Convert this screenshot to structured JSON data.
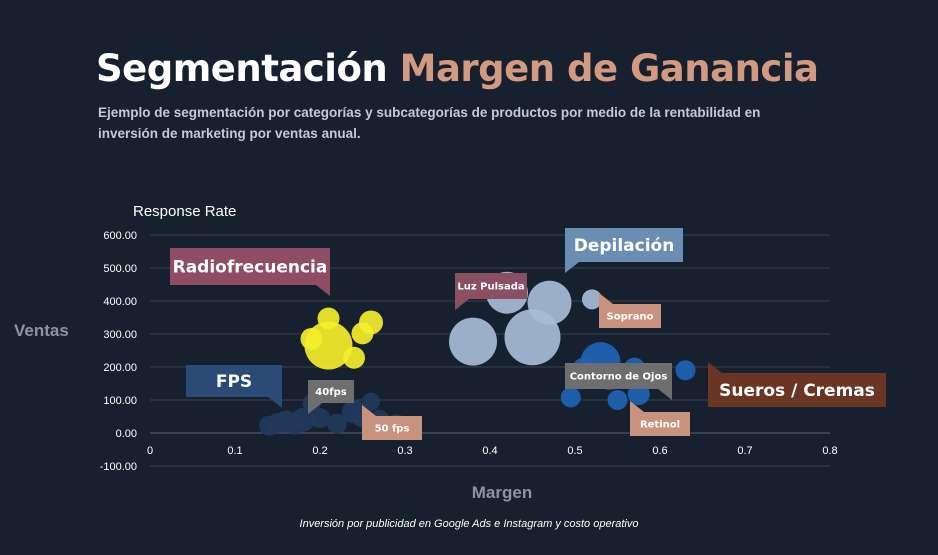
{
  "header": {
    "title_part1": "Segmentación",
    "title_part2": "Margen de Ganancia",
    "subtitle": "Ejemplo de segmentación por categorías y subcategorías de productos por medio de la rentabilidad en inversión de marketing por ventas anual."
  },
  "footer": {
    "note": "Inversión por publicidad en Google Ads e Instagram y costo operativo"
  },
  "chart_data": {
    "type": "scatter",
    "subtype": "bubble",
    "title": "Response Rate",
    "xlabel": "Margen",
    "ylabel": "Ventas",
    "xlim": [
      0,
      0.8
    ],
    "ylim": [
      -100,
      600
    ],
    "x_ticks": [
      "0",
      "0.1",
      "0.2",
      "0.3",
      "0.4",
      "0.5",
      "0.6",
      "0.7",
      "0.8"
    ],
    "y_ticks": [
      "-100.00",
      "0.00",
      "100.00",
      "200.00",
      "300.00",
      "400.00",
      "500.00",
      "600.00"
    ],
    "grid": "horizontal",
    "series": [
      {
        "color": "#f4ee2a",
        "points": [
          {
            "x": 0.19,
            "y": 285,
            "size": 11
          },
          {
            "x": 0.21,
            "y": 347,
            "size": 11
          },
          {
            "x": 0.21,
            "y": 265,
            "size": 24
          },
          {
            "x": 0.24,
            "y": 228,
            "size": 11
          },
          {
            "x": 0.25,
            "y": 302,
            "size": 11
          },
          {
            "x": 0.26,
            "y": 335,
            "size": 12
          }
        ]
      },
      {
        "color": "#a7bcd6",
        "points": [
          {
            "x": 0.38,
            "y": 277,
            "size": 24
          },
          {
            "x": 0.42,
            "y": 425,
            "size": 21
          },
          {
            "x": 0.45,
            "y": 290,
            "size": 28
          },
          {
            "x": 0.47,
            "y": 395,
            "size": 22
          },
          {
            "x": 0.52,
            "y": 405,
            "size": 10
          }
        ]
      },
      {
        "color": "#1f63b4",
        "points": [
          {
            "x": 0.495,
            "y": 108,
            "size": 10
          },
          {
            "x": 0.51,
            "y": 195,
            "size": 11
          },
          {
            "x": 0.53,
            "y": 215,
            "size": 20
          },
          {
            "x": 0.54,
            "y": 170,
            "size": 13
          },
          {
            "x": 0.55,
            "y": 100,
            "size": 10
          },
          {
            "x": 0.57,
            "y": 195,
            "size": 11
          },
          {
            "x": 0.575,
            "y": 118,
            "size": 11
          },
          {
            "x": 0.6,
            "y": 165,
            "size": 10
          },
          {
            "x": 0.63,
            "y": 190,
            "size": 10
          }
        ]
      },
      {
        "color": "#233a5c",
        "points": [
          {
            "x": 0.14,
            "y": 22,
            "size": 10
          },
          {
            "x": 0.15,
            "y": 30,
            "size": 10
          },
          {
            "x": 0.16,
            "y": 35,
            "size": 11
          },
          {
            "x": 0.17,
            "y": 25,
            "size": 10
          },
          {
            "x": 0.18,
            "y": 40,
            "size": 12
          },
          {
            "x": 0.19,
            "y": 90,
            "size": 9
          },
          {
            "x": 0.2,
            "y": 45,
            "size": 10
          },
          {
            "x": 0.22,
            "y": 28,
            "size": 10
          },
          {
            "x": 0.24,
            "y": 65,
            "size": 12
          },
          {
            "x": 0.25,
            "y": 50,
            "size": 11
          },
          {
            "x": 0.26,
            "y": 95,
            "size": 9
          },
          {
            "x": 0.27,
            "y": 40,
            "size": 10
          },
          {
            "x": 0.29,
            "y": 30,
            "size": 9
          }
        ]
      }
    ],
    "annotations": [
      {
        "text": "Radiofrecuencia",
        "bg": "#8f4d63",
        "style": "large"
      },
      {
        "text": "Depilación",
        "bg": "#6b8db1",
        "style": "large"
      },
      {
        "text": "FPS",
        "bg": "#2b4a75",
        "style": "large"
      },
      {
        "text": "Sueros / Cremas",
        "bg": "#6b3524",
        "style": "large"
      },
      {
        "text": "Luz Pulsada",
        "bg": "#8a4f63",
        "style": "small"
      },
      {
        "text": "Soprano",
        "bg": "#c8927e",
        "style": "small"
      },
      {
        "text": "Contorno de Ojos",
        "bg": "#6e6e70",
        "style": "small"
      },
      {
        "text": "Retinol",
        "bg": "#c8927e",
        "style": "small"
      },
      {
        "text": "40fps",
        "bg": "#6e6e70",
        "style": "small"
      },
      {
        "text": "50 fps",
        "bg": "#c8927e",
        "style": "small"
      }
    ]
  }
}
